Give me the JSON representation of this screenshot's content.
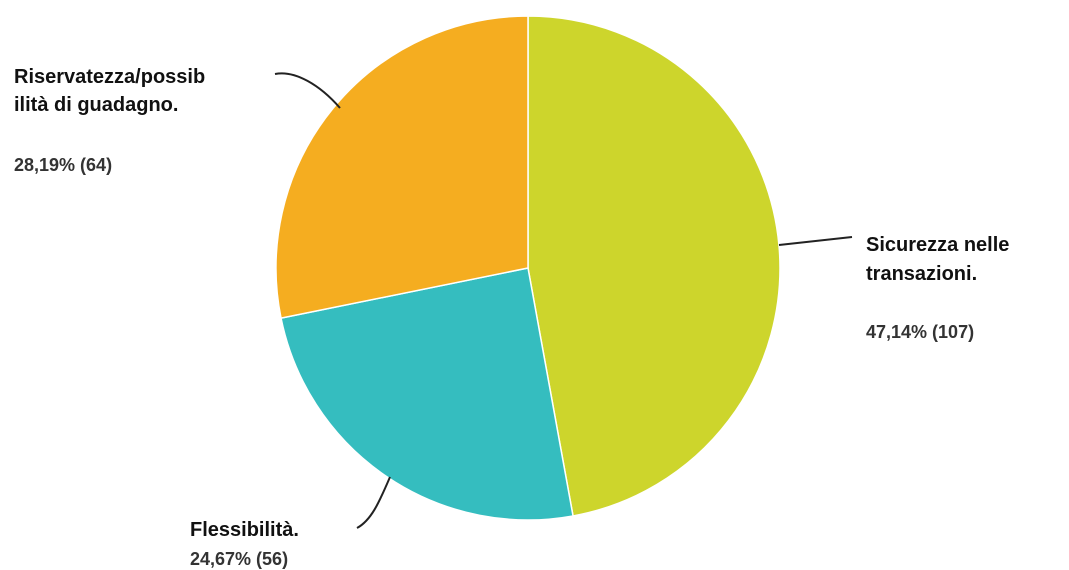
{
  "chart_data": {
    "type": "pie",
    "slices": [
      {
        "label_lines": [
          "Sicurezza nelle",
          "transazioni."
        ],
        "percent_text": "47,14% (107)",
        "percent": 47.14,
        "count": 107,
        "color": "#cdd52c"
      },
      {
        "label_lines": [
          "Flessibilità."
        ],
        "percent_text": "24,67% (56)",
        "percent": 24.67,
        "count": 56,
        "color": "#35bdbf"
      },
      {
        "label_lines": [
          "Riservatezza/possib",
          "ilità di guadagno."
        ],
        "percent_text": "28,19% (64)",
        "percent": 28.19,
        "count": 64,
        "color": "#f5ad20"
      }
    ]
  }
}
